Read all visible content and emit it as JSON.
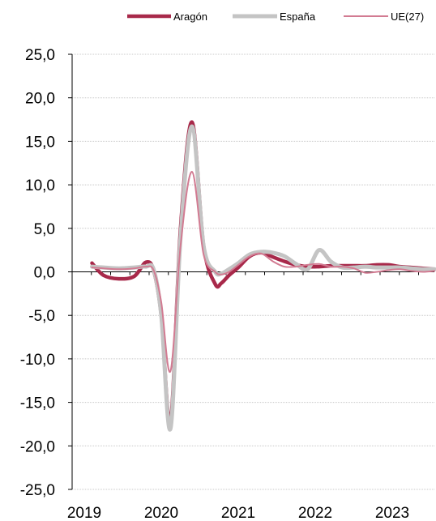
{
  "chart_data": {
    "type": "line",
    "title": "",
    "xlabel": "",
    "ylabel": "",
    "ylim": [
      -25,
      25
    ],
    "xlim": [
      2019,
      2024
    ],
    "y_ticks": [
      25,
      20,
      15,
      10,
      5,
      0,
      -5,
      -10,
      -15,
      -20,
      -25
    ],
    "y_tick_labels": [
      "25,0",
      "20,0",
      "15,0",
      "10,0",
      "5,0",
      "0,0",
      "-5,0",
      "-10,0",
      "-15,0",
      "-20,0",
      "-25,0"
    ],
    "x_ticks": [
      2019,
      2020,
      2021,
      2022,
      2023
    ],
    "x_tick_labels": [
      "2019",
      "2020",
      "2021",
      "2022",
      "2023"
    ],
    "grid": "horizontal",
    "legend_position": "top",
    "series": [
      {
        "name": "Aragón",
        "color": "#a8294a",
        "x": [
          2019.1,
          2019.25,
          2019.45,
          2019.65,
          2019.8,
          2019.9,
          2020.0,
          2020.12,
          2020.25,
          2020.4,
          2020.55,
          2020.7,
          2020.78,
          2020.88,
          2021.0,
          2021.15,
          2021.3,
          2021.45,
          2021.6,
          2021.75,
          2021.9,
          2022.05,
          2022.2,
          2022.35,
          2022.5,
          2022.65,
          2022.8,
          2022.95,
          2023.1,
          2023.25,
          2023.4,
          2023.55
        ],
        "y": [
          1.0,
          -0.4,
          -0.8,
          -0.5,
          1.1,
          0.2,
          -5.0,
          -17.2,
          5.0,
          17.2,
          3.0,
          -1.4,
          -1.3,
          -0.4,
          0.5,
          1.8,
          2.2,
          1.7,
          1.2,
          0.8,
          0.6,
          0.6,
          0.7,
          0.7,
          0.7,
          0.7,
          0.8,
          0.8,
          0.6,
          0.5,
          0.4,
          0.3
        ]
      },
      {
        "name": "España",
        "color": "#c4c4c4",
        "x": [
          2019.1,
          2019.25,
          2019.45,
          2019.65,
          2019.8,
          2019.9,
          2020.0,
          2020.12,
          2020.25,
          2020.4,
          2020.55,
          2020.7,
          2020.78,
          2020.88,
          2021.0,
          2021.15,
          2021.3,
          2021.45,
          2021.6,
          2021.75,
          2021.9,
          2022.05,
          2022.2,
          2022.35,
          2022.5,
          2022.65,
          2022.8,
          2022.95,
          2023.1,
          2023.25,
          2023.4,
          2023.55
        ],
        "y": [
          0.6,
          0.5,
          0.4,
          0.5,
          0.6,
          0.3,
          -5.0,
          -18.0,
          4.0,
          16.7,
          3.0,
          0.0,
          -0.2,
          0.3,
          1.0,
          2.0,
          2.3,
          2.2,
          1.8,
          0.9,
          0.3,
          2.5,
          1.2,
          0.5,
          0.5,
          0.6,
          0.5,
          0.5,
          0.5,
          0.4,
          0.3,
          0.3
        ]
      },
      {
        "name": "UE(27)",
        "color": "#d27b92",
        "x": [
          2019.1,
          2019.25,
          2019.45,
          2019.65,
          2019.8,
          2019.9,
          2020.0,
          2020.12,
          2020.25,
          2020.4,
          2020.55,
          2020.7,
          2020.78,
          2020.88,
          2021.0,
          2021.15,
          2021.3,
          2021.45,
          2021.6,
          2021.75,
          2021.9,
          2022.05,
          2022.2,
          2022.35,
          2022.5,
          2022.65,
          2022.8,
          2022.95,
          2023.1,
          2023.25,
          2023.4,
          2023.55
        ],
        "y": [
          0.5,
          0.4,
          0.3,
          0.4,
          0.6,
          0.2,
          -3.5,
          -11.4,
          3.0,
          11.5,
          2.0,
          0.0,
          -0.3,
          0.0,
          0.8,
          1.8,
          2.1,
          1.2,
          0.6,
          0.6,
          0.8,
          0.9,
          0.6,
          0.6,
          0.4,
          -0.1,
          0.0,
          0.2,
          0.3,
          0.1,
          0.0,
          0.1
        ]
      }
    ]
  }
}
